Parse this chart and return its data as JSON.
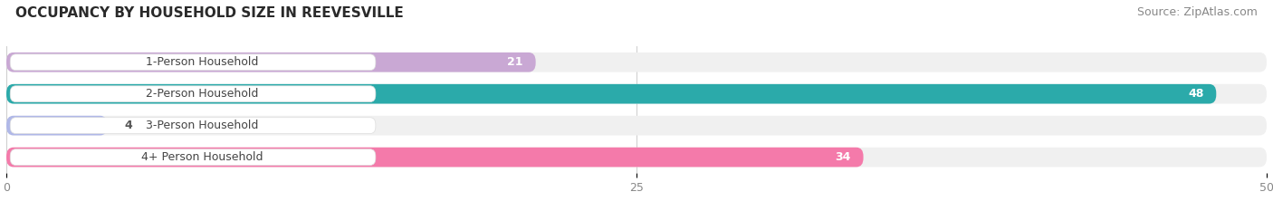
{
  "title": "OCCUPANCY BY HOUSEHOLD SIZE IN REEVESVILLE",
  "source": "Source: ZipAtlas.com",
  "categories": [
    "1-Person Household",
    "2-Person Household",
    "3-Person Household",
    "4+ Person Household"
  ],
  "values": [
    21,
    48,
    4,
    34
  ],
  "bar_colors": [
    "#c9a8d4",
    "#2baaaa",
    "#b0b8e8",
    "#f47aaa"
  ],
  "bar_bg_color": "#e8e8e8",
  "xlim": [
    0,
    50
  ],
  "xticks": [
    0,
    25,
    50
  ],
  "title_fontsize": 11,
  "label_fontsize": 9,
  "value_fontsize": 9,
  "source_fontsize": 9,
  "background_color": "#ffffff",
  "row_bg_color": "#f0f0f0"
}
